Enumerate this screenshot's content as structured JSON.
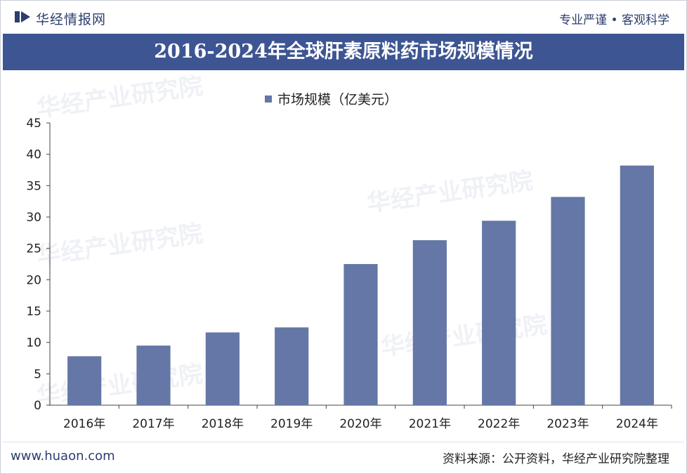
{
  "header": {
    "brand": "华经情报网",
    "slogan": "专业严谨 • 客观科学"
  },
  "title": "2016-2024年全球肝素原料药市场规模情况",
  "footer": {
    "website": "www.huaon.com",
    "source": "资料来源：公开资料，华经产业研究院整理"
  },
  "colors": {
    "title_bg": "#3d5592",
    "bar": "#6477a6",
    "brand_text": "#2c3e6e"
  },
  "chart_data": {
    "type": "bar",
    "categories": [
      "2016年",
      "2017年",
      "2018年",
      "2019年",
      "2020年",
      "2021年",
      "2022年",
      "2023年",
      "2024年"
    ],
    "series": [
      {
        "name": "市场规模（亿美元）",
        "values": [
          7.8,
          9.5,
          11.6,
          12.4,
          22.5,
          26.3,
          29.4,
          33.2,
          38.2
        ]
      }
    ],
    "ylim": [
      0,
      45
    ],
    "yticks": [
      0,
      5,
      10,
      15,
      20,
      25,
      30,
      35,
      40,
      45
    ],
    "legend_position": "top-center",
    "grid": false
  }
}
